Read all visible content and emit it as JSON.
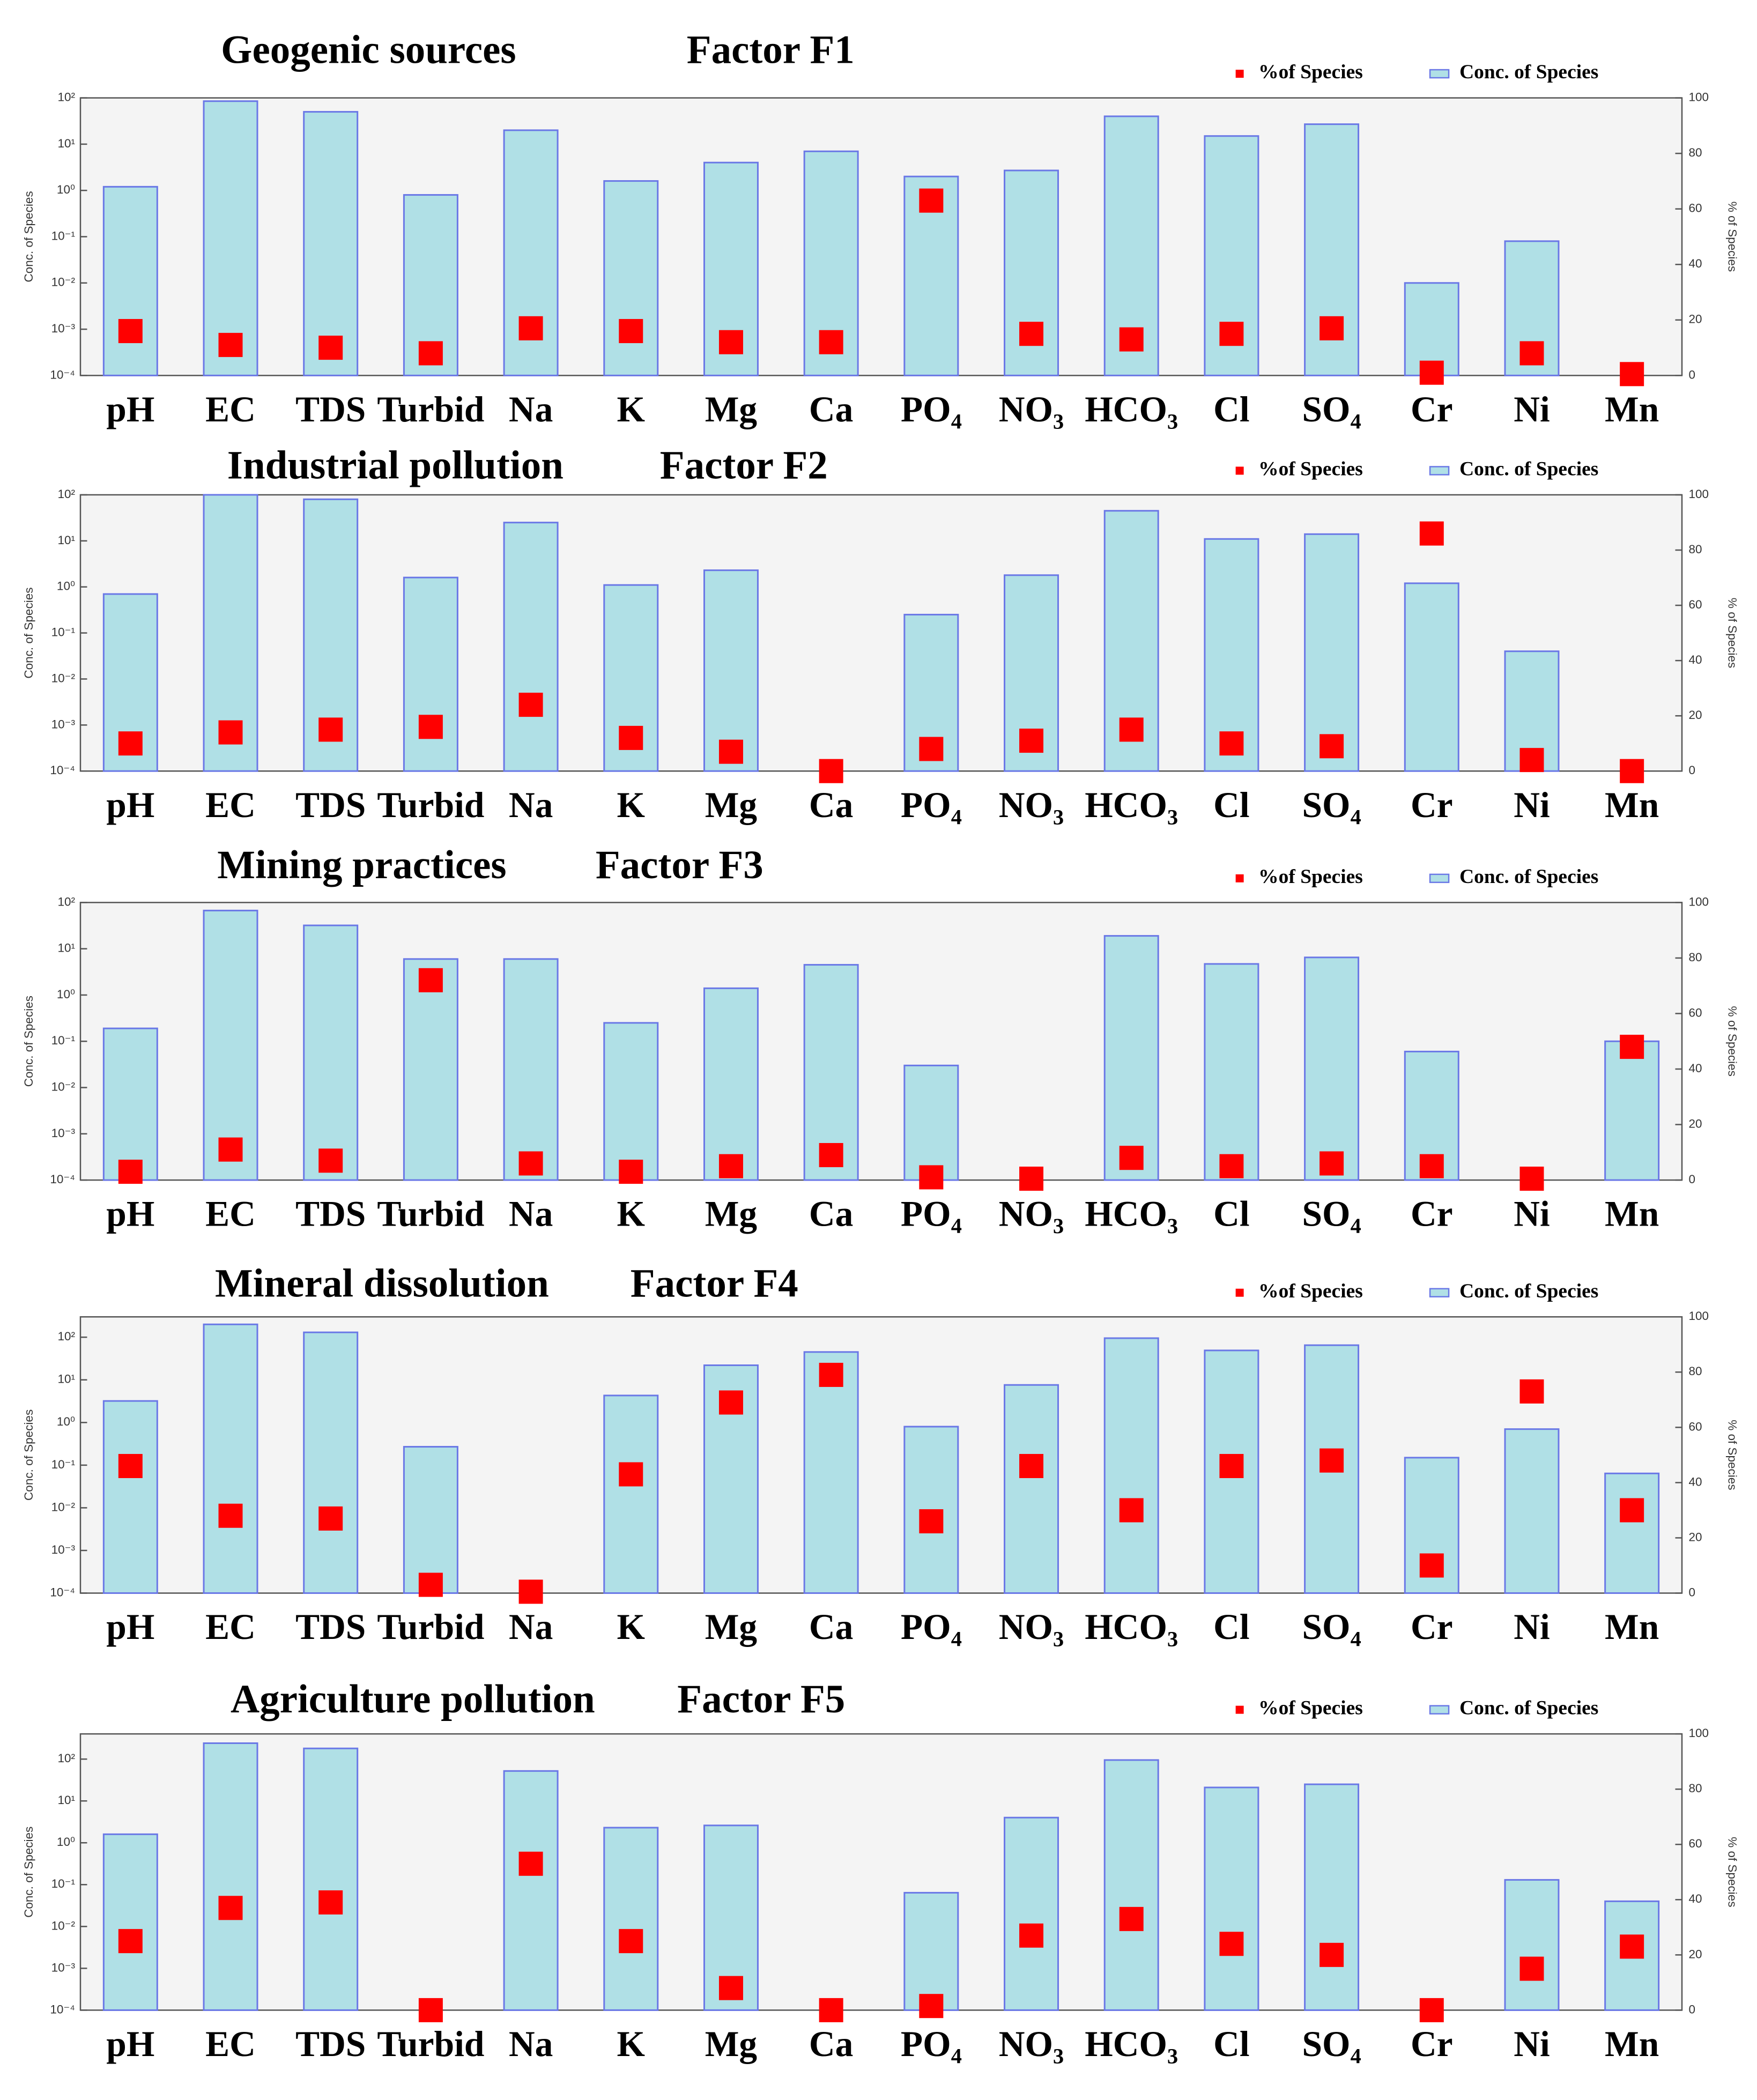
{
  "chart_data": [
    {
      "type": "bar",
      "title": "Geogenic sources",
      "subtitle": "Factor F1",
      "log_scale": true,
      "legend": "top-right",
      "ylabel": "Conc. of Species",
      "y2label": "% of Species",
      "categories": [
        "pH",
        "EC",
        "TDS",
        "Turbid",
        "Na",
        "K",
        "Mg",
        "Ca",
        "PO₄",
        "NO₃",
        "HCO₃",
        "Cl",
        "SO₄",
        "Cr",
        "Ni",
        "Mn"
      ],
      "series": [
        {
          "name": "Conc. of Species",
          "color": "#b0e0e6",
          "values": [
            1.2,
            85,
            50,
            0.8,
            20,
            1.6,
            4,
            7,
            2,
            2.7,
            40,
            15,
            27,
            0.01,
            0.08,
            null
          ]
        },
        {
          "name": "%of Species",
          "color": "#ff0000",
          "axis": "y2",
          "values": [
            16,
            11,
            10,
            8,
            17,
            16,
            12,
            12,
            63,
            15,
            13,
            15,
            17,
            1,
            8,
            0.5
          ]
        }
      ],
      "ylim": [
        0.0001,
        100
      ],
      "yticks": [
        {
          "value": 0.0001,
          "label": "10⁻⁴"
        },
        {
          "value": 0.001,
          "label": "10⁻³"
        },
        {
          "value": 0.01,
          "label": "10⁻²"
        },
        {
          "value": 0.1,
          "label": "10⁻¹"
        },
        {
          "value": 1,
          "label": "10⁰"
        },
        {
          "value": 10,
          "label": "10¹"
        },
        {
          "value": 100,
          "label": "10²"
        }
      ],
      "y2lim": [
        0,
        100
      ],
      "y2ticks": [
        0,
        20,
        40,
        60,
        80,
        100
      ]
    },
    {
      "type": "bar",
      "title": "Industrial pollution",
      "subtitle": "Factor  F2",
      "log_scale": true,
      "legend": "top-right",
      "ylabel": "Conc. of Species",
      "y2label": "% of Species",
      "categories": [
        "pH",
        "EC",
        "TDS",
        "Turbid",
        "Na",
        "K",
        "Mg",
        "Ca",
        "PO₄",
        "NO₃",
        "HCO₃",
        "Cl",
        "SO₄",
        "Cr",
        "Ni",
        "Mn"
      ],
      "series": [
        {
          "name": "Conc. of Species",
          "color": "#b0e0e6",
          "values": [
            0.7,
            100,
            80,
            1.6,
            25,
            1.1,
            2.3,
            null,
            0.25,
            1.8,
            45,
            11,
            14,
            1.2,
            0.04,
            null
          ]
        },
        {
          "name": "%of Species",
          "color": "#ff0000",
          "axis": "y2",
          "values": [
            10,
            14,
            15,
            16,
            24,
            12,
            7,
            0,
            8,
            11,
            15,
            10,
            9,
            86,
            4,
            0
          ]
        }
      ],
      "ylim": [
        0.0001,
        100
      ],
      "yticks": [
        {
          "value": 0.0001,
          "label": "10⁻⁴"
        },
        {
          "value": 0.001,
          "label": "10⁻³"
        },
        {
          "value": 0.01,
          "label": "10⁻²"
        },
        {
          "value": 0.1,
          "label": "10⁻¹"
        },
        {
          "value": 1,
          "label": "10⁰"
        },
        {
          "value": 10,
          "label": "10¹"
        },
        {
          "value": 100,
          "label": "10²"
        }
      ],
      "y2lim": [
        0,
        100
      ],
      "y2ticks": [
        0,
        20,
        40,
        60,
        80,
        100
      ]
    },
    {
      "type": "bar",
      "title": "Mining practices",
      "subtitle": "Factor F3",
      "log_scale": true,
      "legend": "top-right",
      "ylabel": "Conc. of Species",
      "y2label": "% of Species",
      "categories": [
        "pH",
        "EC",
        "TDS",
        "Turbid",
        "Na",
        "K",
        "Mg",
        "Ca",
        "PO₄",
        "NO₃",
        "HCO₃",
        "Cl",
        "SO₄",
        "Cr",
        "Ni",
        "Mn"
      ],
      "series": [
        {
          "name": "Conc. of Species",
          "color": "#b0e0e6",
          "values": [
            0.19,
            67,
            32,
            6,
            6,
            0.25,
            1.4,
            4.5,
            0.03,
            null,
            19,
            4.7,
            6.5,
            0.06,
            null,
            0.1
          ]
        },
        {
          "name": "%of Species",
          "color": "#ff0000",
          "axis": "y2",
          "values": [
            3,
            11,
            7,
            72,
            6,
            3,
            5,
            9,
            1,
            0.5,
            8,
            5,
            6,
            5,
            0.5,
            48
          ]
        }
      ],
      "ylim": [
        0.0001,
        100
      ],
      "yticks": [
        {
          "value": 0.0001,
          "label": "10⁻⁴"
        },
        {
          "value": 0.001,
          "label": "10⁻³"
        },
        {
          "value": 0.01,
          "label": "10⁻²"
        },
        {
          "value": 0.1,
          "label": "10⁻¹"
        },
        {
          "value": 1,
          "label": "10⁰"
        },
        {
          "value": 10,
          "label": "10¹"
        },
        {
          "value": 100,
          "label": "10²"
        }
      ],
      "y2lim": [
        0,
        100
      ],
      "y2ticks": [
        0,
        20,
        40,
        60,
        80,
        100
      ]
    },
    {
      "type": "bar",
      "title": "Mineral dissolution",
      "subtitle": "Factor F4",
      "log_scale": true,
      "legend": "top-right",
      "ylabel": "Conc. of Species",
      "y2label": "% of Species",
      "categories": [
        "pH",
        "EC",
        "TDS",
        "Turbid",
        "Na",
        "K",
        "Mg",
        "Ca",
        "PO₄",
        "NO₃",
        "HCO₃",
        "Cl",
        "SO₄",
        "Cr",
        "Ni",
        "Mn"
      ],
      "series": [
        {
          "name": "Conc. of Species",
          "color": "#b0e0e6",
          "values": [
            3.2,
            200,
            130,
            0.27,
            null,
            4.3,
            22,
            45,
            0.8,
            7.6,
            95,
            49,
            65,
            0.15,
            0.7,
            0.064
          ]
        },
        {
          "name": "%of Species",
          "color": "#ff0000",
          "axis": "y2",
          "values": [
            46,
            28,
            27,
            3,
            0.5,
            43,
            69,
            79,
            26,
            46,
            30,
            46,
            48,
            10,
            73,
            30
          ]
        }
      ],
      "ylim": [
        0.0001,
        300
      ],
      "yticks": [
        {
          "value": 0.0001,
          "label": "10⁻⁴"
        },
        {
          "value": 0.001,
          "label": "10⁻³"
        },
        {
          "value": 0.01,
          "label": "10⁻²"
        },
        {
          "value": 0.1,
          "label": "10⁻¹"
        },
        {
          "value": 1,
          "label": "10⁰"
        },
        {
          "value": 10,
          "label": "10¹"
        },
        {
          "value": 100,
          "label": "10²"
        }
      ],
      "y2lim": [
        0,
        100
      ],
      "y2ticks": [
        0,
        20,
        40,
        60,
        80,
        100
      ]
    },
    {
      "type": "bar",
      "title": "Agriculture pollution",
      "subtitle": "Factor F5",
      "log_scale": true,
      "legend": "top-right",
      "ylabel": "Conc. of Species",
      "y2label": "% of Species",
      "categories": [
        "pH",
        "EC",
        "TDS",
        "Turbid",
        "Na",
        "K",
        "Mg",
        "Ca",
        "PO₄",
        "NO₃",
        "HCO₃",
        "Cl",
        "SO₄",
        "Cr",
        "Ni",
        "Mn"
      ],
      "series": [
        {
          "name": "Conc. of Species",
          "color": "#b0e0e6",
          "values": [
            1.6,
            240,
            180,
            null,
            52,
            2.3,
            2.6,
            null,
            0.064,
            4,
            95,
            21,
            25,
            null,
            0.13,
            0.04
          ]
        },
        {
          "name": "%of Species",
          "color": "#ff0000",
          "axis": "y2",
          "values": [
            25,
            37,
            39,
            0,
            53,
            25,
            8,
            0,
            1.5,
            27,
            33,
            24,
            20,
            0,
            15,
            23
          ]
        }
      ],
      "ylim": [
        0.0001,
        400
      ],
      "yticks": [
        {
          "value": 0.0001,
          "label": "10⁻⁴"
        },
        {
          "value": 0.001,
          "label": "10⁻³"
        },
        {
          "value": 0.01,
          "label": "10⁻²"
        },
        {
          "value": 0.1,
          "label": "10⁻¹"
        },
        {
          "value": 1,
          "label": "10⁰"
        },
        {
          "value": 10,
          "label": "10¹"
        },
        {
          "value": 100,
          "label": "10²"
        }
      ],
      "y2lim": [
        0,
        100
      ],
      "y2ticks": [
        0,
        20,
        40,
        60,
        80,
        100
      ]
    }
  ]
}
